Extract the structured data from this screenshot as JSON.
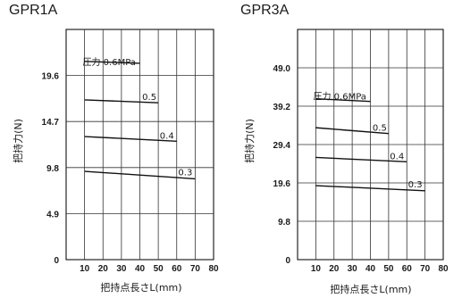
{
  "chart_data": [
    {
      "type": "line",
      "title": "GPR1A",
      "xlabel": "把持点長さL(mm)",
      "ylabel": "把持力(N)",
      "xlim": [
        0,
        80
      ],
      "ylim": [
        0,
        24.5
      ],
      "x_ticks": [
        10,
        20,
        30,
        40,
        50,
        60,
        70,
        80
      ],
      "y_ticks": [
        0,
        4.9,
        9.8,
        14.7,
        19.6
      ],
      "x_tick_labels": [
        "10",
        "20",
        "30",
        "40",
        "50",
        "60",
        "70",
        "80"
      ],
      "y_tick_labels": [
        "0",
        "4.9",
        "9.8",
        "14.7",
        "19.6"
      ],
      "grid": true,
      "series": [
        {
          "name": "圧力 0.6MPa",
          "x": [
            10,
            40
          ],
          "y": [
            21.1,
            20.9
          ]
        },
        {
          "name": "0.5",
          "x": [
            10,
            50
          ],
          "y": [
            17.0,
            16.7
          ]
        },
        {
          "name": "0.4",
          "x": [
            10,
            60
          ],
          "y": [
            13.1,
            12.6
          ]
        },
        {
          "name": "0.3",
          "x": [
            10,
            70
          ],
          "y": [
            9.4,
            8.6
          ]
        }
      ]
    },
    {
      "type": "line",
      "title": "GPR3A",
      "xlabel": "把持点長さL(mm)",
      "ylabel": "把持力(N)",
      "xlim": [
        0,
        80
      ],
      "ylim": [
        0,
        58.8
      ],
      "x_ticks": [
        10,
        20,
        30,
        40,
        50,
        60,
        70,
        80
      ],
      "y_ticks": [
        0,
        9.8,
        19.6,
        29.4,
        39.2,
        49.0
      ],
      "x_tick_labels": [
        "10",
        "20",
        "30",
        "40",
        "50",
        "60",
        "70",
        "80"
      ],
      "y_tick_labels": [
        "0",
        "9.8",
        "19.6",
        "29.4",
        "39.2",
        "49.0"
      ],
      "grid": true,
      "series": [
        {
          "name": "圧力 0.6MPa",
          "x": [
            10,
            40
          ],
          "y": [
            41.1,
            40.4
          ]
        },
        {
          "name": "0.5",
          "x": [
            10,
            50
          ],
          "y": [
            33.7,
            32.2
          ]
        },
        {
          "name": "0.4",
          "x": [
            10,
            60
          ],
          "y": [
            26.1,
            25.0
          ]
        },
        {
          "name": "0.3",
          "x": [
            10,
            70
          ],
          "y": [
            18.9,
            17.6
          ]
        }
      ]
    }
  ]
}
